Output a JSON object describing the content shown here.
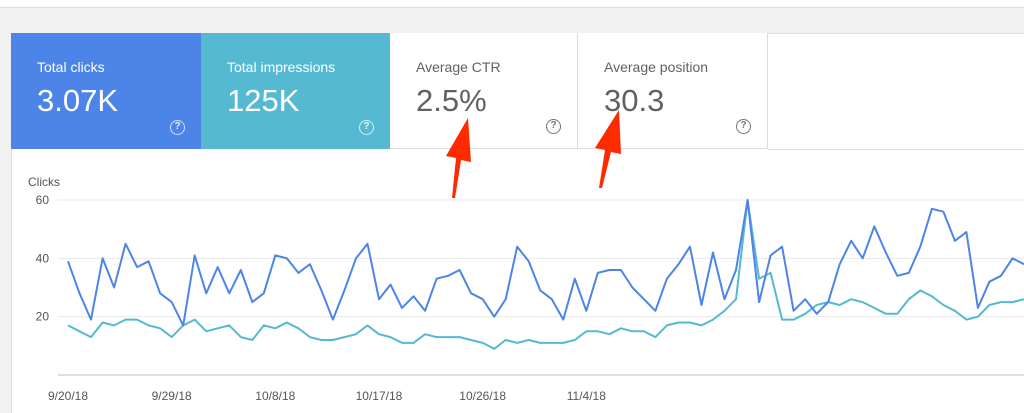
{
  "metrics": {
    "clicks": {
      "label": "Total clicks",
      "value": "3.07K"
    },
    "impressions": {
      "label": "Total impressions",
      "value": "125K"
    },
    "ctr": {
      "label": "Average CTR",
      "value": "2.5%"
    },
    "position": {
      "label": "Average position",
      "value": "30.3"
    },
    "help_glyph": "?"
  },
  "colors": {
    "clicks": "#4d84e8",
    "impressions": "#55b9d2",
    "arrow": "#ff2a00"
  },
  "chart_data": {
    "type": "line",
    "ylabel": "Clicks",
    "ylim": [
      0,
      60
    ],
    "yticks": [
      20,
      40,
      60
    ],
    "grid": true,
    "xtick_labels": [
      "9/20/18",
      "9/29/18",
      "10/8/18",
      "10/17/18",
      "10/26/18",
      "11/4/18"
    ],
    "series": [
      {
        "color": "#4d84e8",
        "values": [
          39,
          28,
          19,
          40,
          30,
          45,
          37,
          39,
          28,
          25,
          17,
          41,
          28,
          37,
          28,
          36,
          25,
          28,
          41,
          40,
          35,
          38,
          29,
          19,
          29,
          40,
          45,
          26,
          31,
          23,
          27,
          22,
          33,
          34,
          36,
          28,
          26,
          20,
          26,
          44,
          39,
          29,
          26,
          19,
          33,
          22,
          35,
          36,
          36,
          30,
          26,
          22,
          33,
          38,
          44,
          24,
          42,
          26,
          36,
          60,
          25,
          41,
          44,
          22,
          26,
          21,
          25,
          38,
          46,
          40,
          51,
          42,
          34,
          35,
          44,
          57,
          56,
          46,
          49,
          23,
          32,
          34,
          40,
          38
        ]
      },
      {
        "color": "#55b9d2",
        "values": [
          17,
          15,
          13,
          18,
          17,
          19,
          19,
          17,
          16,
          13,
          17,
          19,
          15,
          16,
          17,
          13,
          12,
          17,
          16,
          18,
          16,
          13,
          12,
          12,
          13,
          14,
          17,
          14,
          13,
          11,
          11,
          14,
          13,
          13,
          13,
          12,
          11,
          9,
          12,
          11,
          12,
          11,
          11,
          11,
          12,
          15,
          15,
          14,
          16,
          15,
          15,
          13,
          17,
          18,
          18,
          17,
          19,
          22,
          26,
          60,
          33,
          35,
          19,
          19,
          21,
          24,
          25,
          24,
          26,
          25,
          23,
          21,
          21,
          26,
          29,
          27,
          24,
          22,
          19,
          20,
          24,
          25,
          25,
          26
        ]
      }
    ]
  }
}
